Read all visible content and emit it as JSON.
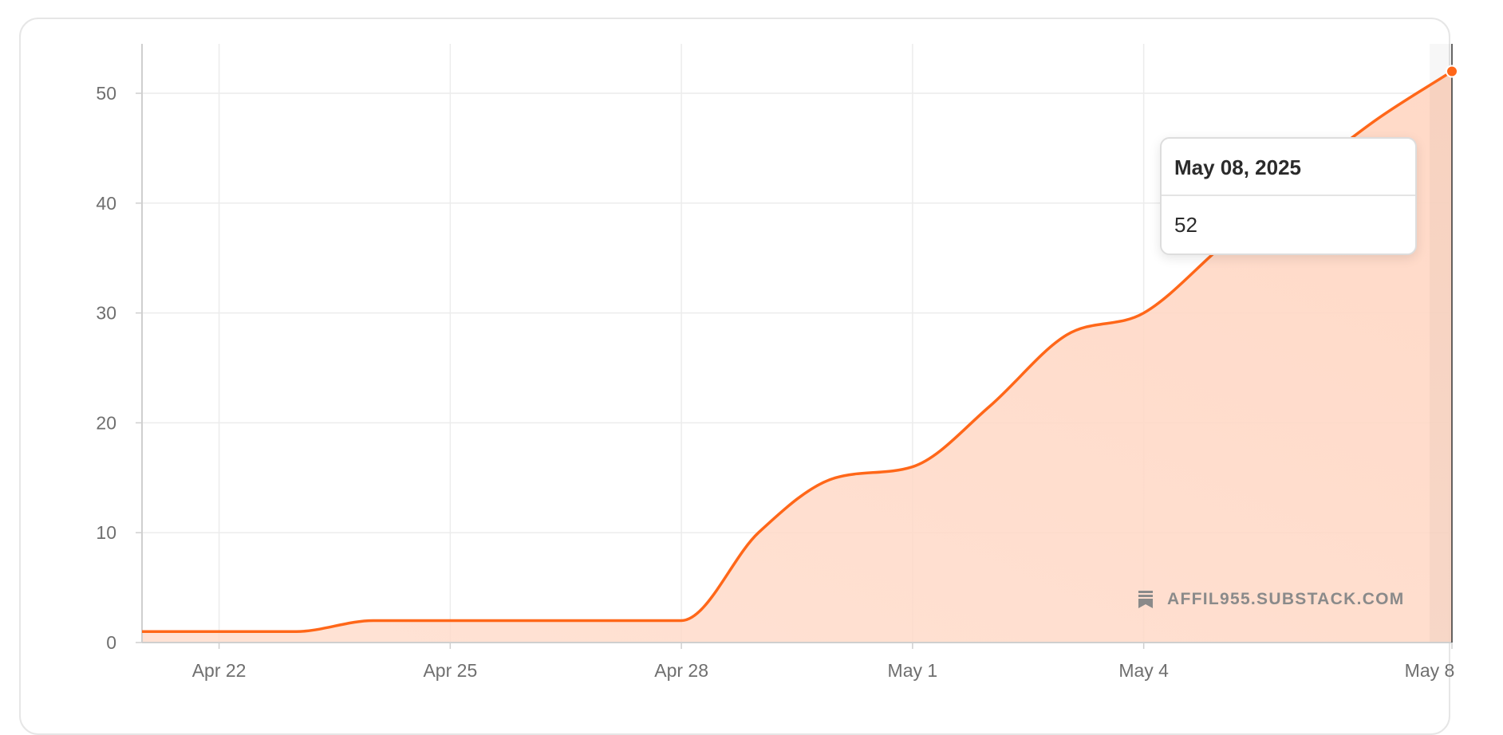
{
  "chart_data": {
    "type": "area",
    "x": [
      "2025-04-21",
      "2025-04-22",
      "2025-04-23",
      "2025-04-24",
      "2025-04-25",
      "2025-04-26",
      "2025-04-27",
      "2025-04-28",
      "2025-04-29",
      "2025-04-30",
      "2025-05-01",
      "2025-05-02",
      "2025-05-03",
      "2025-05-04",
      "2025-05-05",
      "2025-05-06",
      "2025-05-07",
      "2025-05-08"
    ],
    "series": [
      {
        "values": [
          1,
          1,
          1,
          2,
          2,
          2,
          2,
          2,
          10,
          15,
          16,
          21.5,
          28,
          30,
          36,
          42,
          47.5,
          52
        ]
      }
    ],
    "x_tick_labels": [
      "Apr 22",
      "Apr 25",
      "Apr 28",
      "May 1",
      "May 4",
      "May 8"
    ],
    "x_tick_dates": [
      "2025-04-22",
      "2025-04-25",
      "2025-04-28",
      "2025-05-01",
      "2025-05-04",
      "2025-05-08"
    ],
    "y_ticks": [
      0,
      10,
      20,
      30,
      40,
      50
    ],
    "ylim": [
      0,
      54.5
    ],
    "grid": true,
    "title": "",
    "xlabel": "",
    "ylabel": "",
    "line_color": "#ff6719",
    "fill_color": "#ffd9c7",
    "grid_color": "#ececec"
  },
  "tooltip": {
    "date": "May 08, 2025",
    "value": "52"
  },
  "watermark": {
    "text": "AFFIL955.SUBSTACK.COM",
    "icon": "substack-logo-icon"
  }
}
